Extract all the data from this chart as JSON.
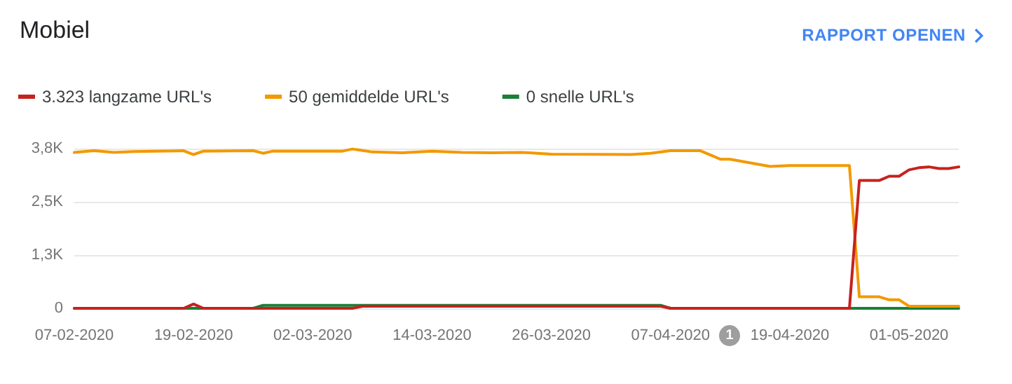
{
  "chart_data": {
    "type": "line",
    "title": "Mobiel",
    "annotations": [
      "RAPPORT OPENEN",
      "1"
    ],
    "legend": "top left",
    "grid": "y",
    "xlim": [
      "2020-02-07",
      "2020-05-06"
    ],
    "xticks": [
      {
        "value": "2020-02-07",
        "label": "07-02-2020"
      },
      {
        "value": "2020-02-19",
        "label": "19-02-2020"
      },
      {
        "value": "2020-03-02",
        "label": "02-03-2020"
      },
      {
        "value": "2020-03-14",
        "label": "14-03-2020"
      },
      {
        "value": "2020-03-26",
        "label": "26-03-2020"
      },
      {
        "value": "2020-04-07",
        "label": "07-04-2020"
      },
      {
        "value": "2020-04-19",
        "label": "19-04-2020"
      },
      {
        "value": "2020-05-01",
        "label": "01-05-2020"
      }
    ],
    "ylim": [
      0,
      3750
    ],
    "yticks": [
      0,
      {
        "value": 1250,
        "label": "1,3K"
      },
      {
        "value": 2500,
        "label": "2,5K"
      },
      {
        "value": 3750,
        "label": "3,8K"
      }
    ],
    "series": [
      {
        "name": "3.323 langzame URL's",
        "color": "#c5221f",
        "x": [
          "2020-02-07",
          "2020-02-18",
          "2020-02-19",
          "2020-02-20",
          "2020-03-06",
          "2020-03-07",
          "2020-04-06",
          "2020-04-07",
          "2020-04-25",
          "2020-04-26",
          "2020-04-28",
          "2020-04-29",
          "2020-04-30",
          "2020-05-01",
          "2020-05-02",
          "2020-05-03",
          "2020-05-04",
          "2020-05-05",
          "2020-05-06"
        ],
        "values": [
          0,
          0,
          100,
          0,
          0,
          50,
          50,
          0,
          0,
          3000,
          3000,
          3100,
          3100,
          3250,
          3300,
          3320,
          3280,
          3280,
          3320
        ]
      },
      {
        "name": "50 gemiddelde URL's",
        "color": "#f29900",
        "x": [
          "2020-02-07",
          "2020-02-09",
          "2020-02-11",
          "2020-02-13",
          "2020-02-18",
          "2020-02-19",
          "2020-02-20",
          "2020-02-25",
          "2020-02-26",
          "2020-02-27",
          "2020-03-05",
          "2020-03-06",
          "2020-03-08",
          "2020-03-11",
          "2020-03-14",
          "2020-03-17",
          "2020-03-20",
          "2020-03-23",
          "2020-03-26",
          "2020-04-03",
          "2020-04-05",
          "2020-04-07",
          "2020-04-10",
          "2020-04-12",
          "2020-04-13",
          "2020-04-17",
          "2020-04-19",
          "2020-04-25",
          "2020-04-26",
          "2020-04-28",
          "2020-04-29",
          "2020-04-30",
          "2020-05-01",
          "2020-05-06"
        ],
        "values": [
          3660,
          3700,
          3660,
          3680,
          3700,
          3610,
          3690,
          3700,
          3640,
          3690,
          3690,
          3740,
          3670,
          3650,
          3690,
          3660,
          3650,
          3660,
          3620,
          3610,
          3640,
          3700,
          3700,
          3500,
          3500,
          3330,
          3350,
          3350,
          270,
          270,
          200,
          200,
          50,
          50
        ]
      },
      {
        "name": "0 snelle URL's",
        "color": "#188038",
        "x": [
          "2020-02-07",
          "2020-02-25",
          "2020-02-26",
          "2020-04-06",
          "2020-04-07",
          "2020-05-06"
        ],
        "values": [
          0,
          0,
          70,
          70,
          0,
          0
        ]
      }
    ]
  }
}
